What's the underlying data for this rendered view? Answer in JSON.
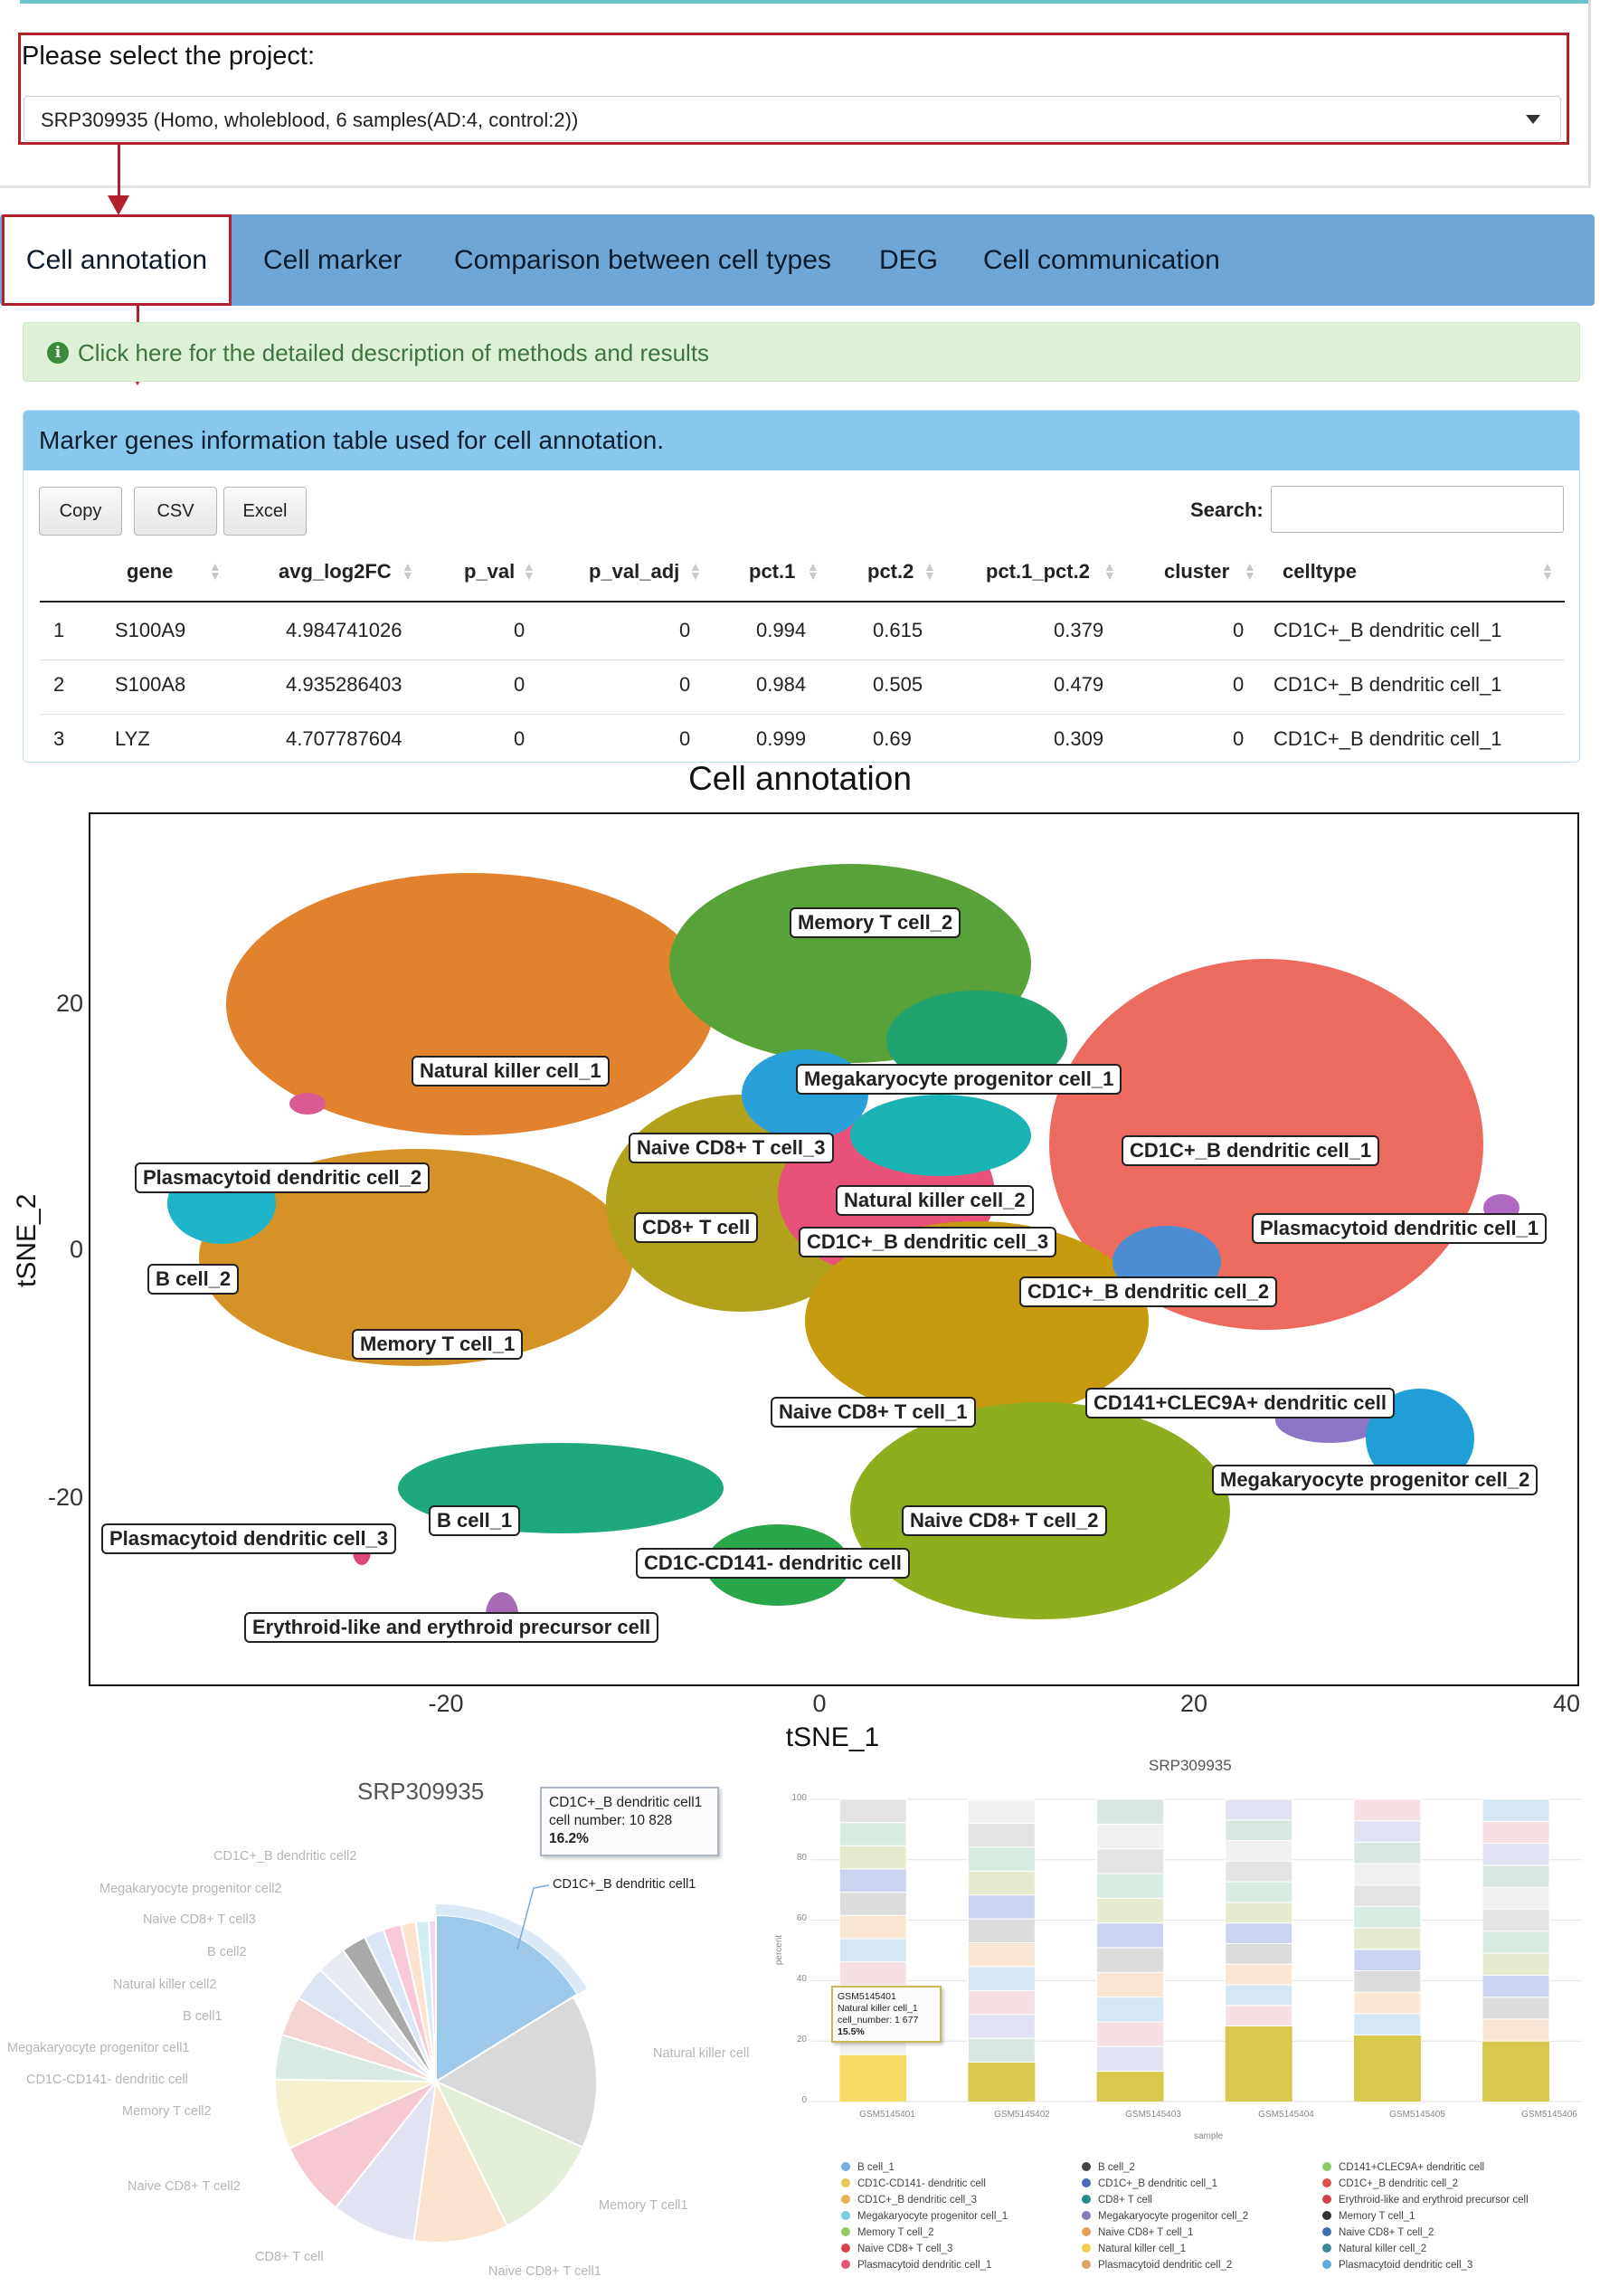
{
  "project": {
    "label": "Please select the project:",
    "selected": "SRP309935 (Homo, wholeblood, 6 samples(AD:4, control:2))"
  },
  "tabs": [
    "Cell annotation",
    "Cell marker",
    "Comparison between cell types",
    "DEG",
    "Cell communication"
  ],
  "info": {
    "text": "Click here for the detailed description of methods and results"
  },
  "marker_panel": {
    "title": "Marker genes information table used for cell annotation.",
    "buttons": [
      "Copy",
      "CSV",
      "Excel"
    ],
    "search_label": "Search:",
    "search_value": "",
    "columns": [
      "gene",
      "avg_log2FC",
      "p_val",
      "p_val_adj",
      "pct.1",
      "pct.2",
      "pct.1_pct.2",
      "cluster",
      "celltype"
    ],
    "rows": [
      [
        "1",
        "S100A9",
        "4.984741026",
        "0",
        "0",
        "0.994",
        "0.615",
        "0.379",
        "0",
        "CD1C+_B dendritic cell_1"
      ],
      [
        "2",
        "S100A8",
        "4.935286403",
        "0",
        "0",
        "0.984",
        "0.505",
        "0.479",
        "0",
        "CD1C+_B dendritic cell_1"
      ],
      [
        "3",
        "LYZ",
        "4.707787604",
        "0",
        "0",
        "0.999",
        "0.69",
        "0.309",
        "0",
        "CD1C+_B dendritic cell_1"
      ]
    ]
  },
  "tsne": {
    "title": "Cell annotation",
    "xlabel": "tSNE_1",
    "ylabel": "tSNE_2",
    "xticks": [
      "-20",
      "0",
      "20",
      "40"
    ],
    "yticks": [
      "20",
      "0",
      "-20"
    ],
    "labels": [
      {
        "text": "Memory T cell_2",
        "color": "#57a339"
      },
      {
        "text": "Natural killer cell_1",
        "color": "#e0822e"
      },
      {
        "text": "Megakaryocyte progenitor cell_1",
        "color": "#22a26f"
      },
      {
        "text": "Naive CD8+ T cell_3",
        "color": "#2aa0d8"
      },
      {
        "text": "CD1C+_B dendritic cell_1",
        "color": "#ec6b5e"
      },
      {
        "text": "Plasmacytoid dendritic cell_2",
        "color": "#da5a92"
      },
      {
        "text": "Natural killer cell_2",
        "color": "#1ab3b3"
      },
      {
        "text": "CD8+ T cell",
        "color": "#b2a21b"
      },
      {
        "text": "CD1C+_B dendritic cell_3",
        "color": "#e8517a"
      },
      {
        "text": "Plasmacytoid dendritic cell_1",
        "color": "#b069c1"
      },
      {
        "text": "B cell_2",
        "color": "#1fb3c9"
      },
      {
        "text": "CD1C+_B dendritic cell_2",
        "color": "#4c8dd1"
      },
      {
        "text": "Memory T cell_1",
        "color": "#d59226"
      },
      {
        "text": "Naive CD8+ T cell_1",
        "color": "#c79b10"
      },
      {
        "text": "CD141+CLEC9A+ dendritic cell",
        "color": "#8e76c6"
      },
      {
        "text": "Megakaryocyte progenitor cell_2",
        "color": "#1f9fd5"
      },
      {
        "text": "B cell_1",
        "color": "#1ea87d"
      },
      {
        "text": "Plasmacytoid dendritic cell_3",
        "color": "#e0457a"
      },
      {
        "text": "Naive CD8+ T cell_2",
        "color": "#8fae1e"
      },
      {
        "text": "CD1C-CD141- dendritic cell",
        "color": "#2aa64a"
      },
      {
        "text": "Erythroid-like and erythroid precursor cell",
        "color": "#a869b5"
      }
    ]
  },
  "pie": {
    "title": "SRP309935",
    "tooltip": {
      "name": "CD1C+_B dendritic cell1",
      "line": "cell number: 10 828",
      "pct": "16.2%"
    },
    "highlight_label": "CD1C+_B dendritic cell1",
    "labels": [
      "CD1C+_B dendritic cell2",
      "Megakaryocyte progenitor cell2",
      "Naive CD8+ T cell3",
      "B cell2",
      "Natural killer cell2",
      "B cell1",
      "Megakaryocyte progenitor cell1",
      "CD1C-CD141- dendritic cell",
      "Memory T cell2",
      "Naive CD8+ T cell2",
      "CD8+ T cell",
      "Naive CD8+ T cell1",
      "Memory T cell1",
      "Natural killer cell"
    ],
    "slices": [
      {
        "value": 16.2,
        "color": "#9ec9ea"
      },
      {
        "value": 15.5,
        "color": "#d9d9d9"
      },
      {
        "value": 11.0,
        "color": "#e4efd9"
      },
      {
        "value": 9.5,
        "color": "#fbe4cf"
      },
      {
        "value": 8.5,
        "color": "#e3e4f3"
      },
      {
        "value": 7.5,
        "color": "#f6c9d2"
      },
      {
        "value": 7.0,
        "color": "#f6f0cf"
      },
      {
        "value": 4.5,
        "color": "#d9ebe2"
      },
      {
        "value": 4.0,
        "color": "#f5d4d4"
      },
      {
        "value": 3.5,
        "color": "#dde4f2"
      },
      {
        "value": 3.0,
        "color": "#e9ebf3"
      },
      {
        "value": 2.5,
        "color": "#a9a9a9"
      },
      {
        "value": 2.0,
        "color": "#dbe7f7"
      },
      {
        "value": 1.8,
        "color": "#f9c9d9"
      },
      {
        "value": 1.5,
        "color": "#fde3cf"
      },
      {
        "value": 1.3,
        "color": "#d5eef5"
      },
      {
        "value": 0.7,
        "color": "#eed9ef"
      }
    ]
  },
  "bar": {
    "title": "SRP309935",
    "ylabel": "percent",
    "xlabel": "sample",
    "yticks": [
      "100",
      "80",
      "60",
      "40",
      "20",
      "0"
    ],
    "samples": [
      "GSM5145401",
      "GSM5145402",
      "GSM5145403",
      "GSM5145404",
      "GSM5145405",
      "GSM5145406"
    ],
    "tooltip": {
      "sample": "GSM5145401",
      "name": "Natural killer cell_1",
      "line": "cell_number: 1 677",
      "pct": "15.5%"
    },
    "stack_colors": [
      "#f1f1f1",
      "#d8e8e0",
      "#e2e3f2",
      "#f7e0e3",
      "#d4e7f3",
      "#f9e6d3",
      "#dcdcdc",
      "#cbd4ef",
      "#e6ebcf",
      "#d8ece2",
      "#e4e4e4"
    ],
    "legend": [
      {
        "name": "B cell_1",
        "color": "#73aede"
      },
      {
        "name": "B cell_2",
        "color": "#444444"
      },
      {
        "name": "CD141+CLEC9A+ dendritic cell",
        "color": "#8fc96a"
      },
      {
        "name": "CD1C-CD141- dendritic cell",
        "color": "#e7c85a"
      },
      {
        "name": "CD1C+_B dendritic cell_1",
        "color": "#4a6bb6"
      },
      {
        "name": "CD1C+_B dendritic cell_2",
        "color": "#d9534f"
      },
      {
        "name": "CD1C+_B dendritic cell_3",
        "color": "#e9b44c"
      },
      {
        "name": "CD8+ T cell",
        "color": "#2a8a86"
      },
      {
        "name": "Erythroid-like and erythroid precursor cell",
        "color": "#d0434d"
      },
      {
        "name": "Megakaryocyte progenitor cell_1",
        "color": "#7fcce0"
      },
      {
        "name": "Megakaryocyte progenitor cell_2",
        "color": "#8a7bbd"
      },
      {
        "name": "Memory T cell_1",
        "color": "#333333"
      },
      {
        "name": "Memory T cell_2",
        "color": "#96c95f"
      },
      {
        "name": "Naive CD8+ T cell_1",
        "color": "#e6a15b"
      },
      {
        "name": "Naive CD8+ T cell_2",
        "color": "#3d6fb1"
      },
      {
        "name": "Naive CD8+ T cell_3",
        "color": "#d6454d"
      },
      {
        "name": "Natural killer cell_1",
        "color": "#efcf4a"
      },
      {
        "name": "Natural killer cell_2",
        "color": "#3c8b99"
      },
      {
        "name": "Plasmacytoid dendritic cell_1",
        "color": "#e8537a"
      },
      {
        "name": "Plasmacytoid dendritic cell_2",
        "color": "#d9a36b"
      },
      {
        "name": "Plasmacytoid dendritic cell_3",
        "color": "#62a9d9"
      }
    ]
  }
}
